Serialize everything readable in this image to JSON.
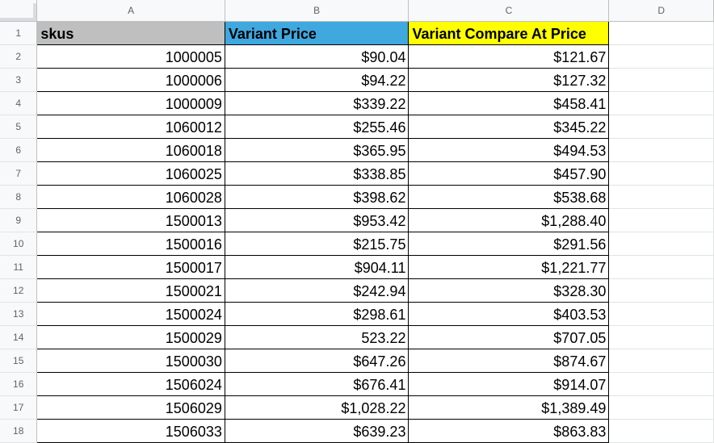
{
  "sheet": {
    "column_headers": [
      "A",
      "B",
      "C",
      "D"
    ],
    "header_row": {
      "row_number": "1",
      "col_a": "skus",
      "col_b": "Variant Price",
      "col_c": "Variant Compare At Price",
      "colors": {
        "col_a": "#bfbfbf",
        "col_b": "#3ea8df",
        "col_c": "#ffff00"
      }
    },
    "rows": [
      {
        "n": "2",
        "sku": "1000005",
        "price": "$90.04",
        "compare": "$121.67"
      },
      {
        "n": "3",
        "sku": "1000006",
        "price": "$94.22",
        "compare": "$127.32"
      },
      {
        "n": "4",
        "sku": "1000009",
        "price": "$339.22",
        "compare": "$458.41"
      },
      {
        "n": "5",
        "sku": "1060012",
        "price": "$255.46",
        "compare": "$345.22"
      },
      {
        "n": "6",
        "sku": "1060018",
        "price": "$365.95",
        "compare": "$494.53"
      },
      {
        "n": "7",
        "sku": "1060025",
        "price": "$338.85",
        "compare": "$457.90"
      },
      {
        "n": "8",
        "sku": "1060028",
        "price": "$398.62",
        "compare": "$538.68"
      },
      {
        "n": "9",
        "sku": "1500013",
        "price": "$953.42",
        "compare": "$1,288.40"
      },
      {
        "n": "10",
        "sku": "1500016",
        "price": "$215.75",
        "compare": "$291.56"
      },
      {
        "n": "11",
        "sku": "1500017",
        "price": "$904.11",
        "compare": "$1,221.77"
      },
      {
        "n": "12",
        "sku": "1500021",
        "price": "$242.94",
        "compare": "$328.30"
      },
      {
        "n": "13",
        "sku": "1500024",
        "price": "$298.61",
        "compare": "$403.53"
      },
      {
        "n": "14",
        "sku": "1500029",
        "price": "523.22",
        "compare": "$707.05"
      },
      {
        "n": "15",
        "sku": "1500030",
        "price": "$647.26",
        "compare": "$874.67"
      },
      {
        "n": "16",
        "sku": "1506024",
        "price": "$676.41",
        "compare": "$914.07"
      },
      {
        "n": "17",
        "sku": "1506029",
        "price": "$1,028.22",
        "compare": "$1,389.49"
      },
      {
        "n": "18",
        "sku": "1506033",
        "price": "$639.23",
        "compare": "$863.83"
      }
    ]
  }
}
